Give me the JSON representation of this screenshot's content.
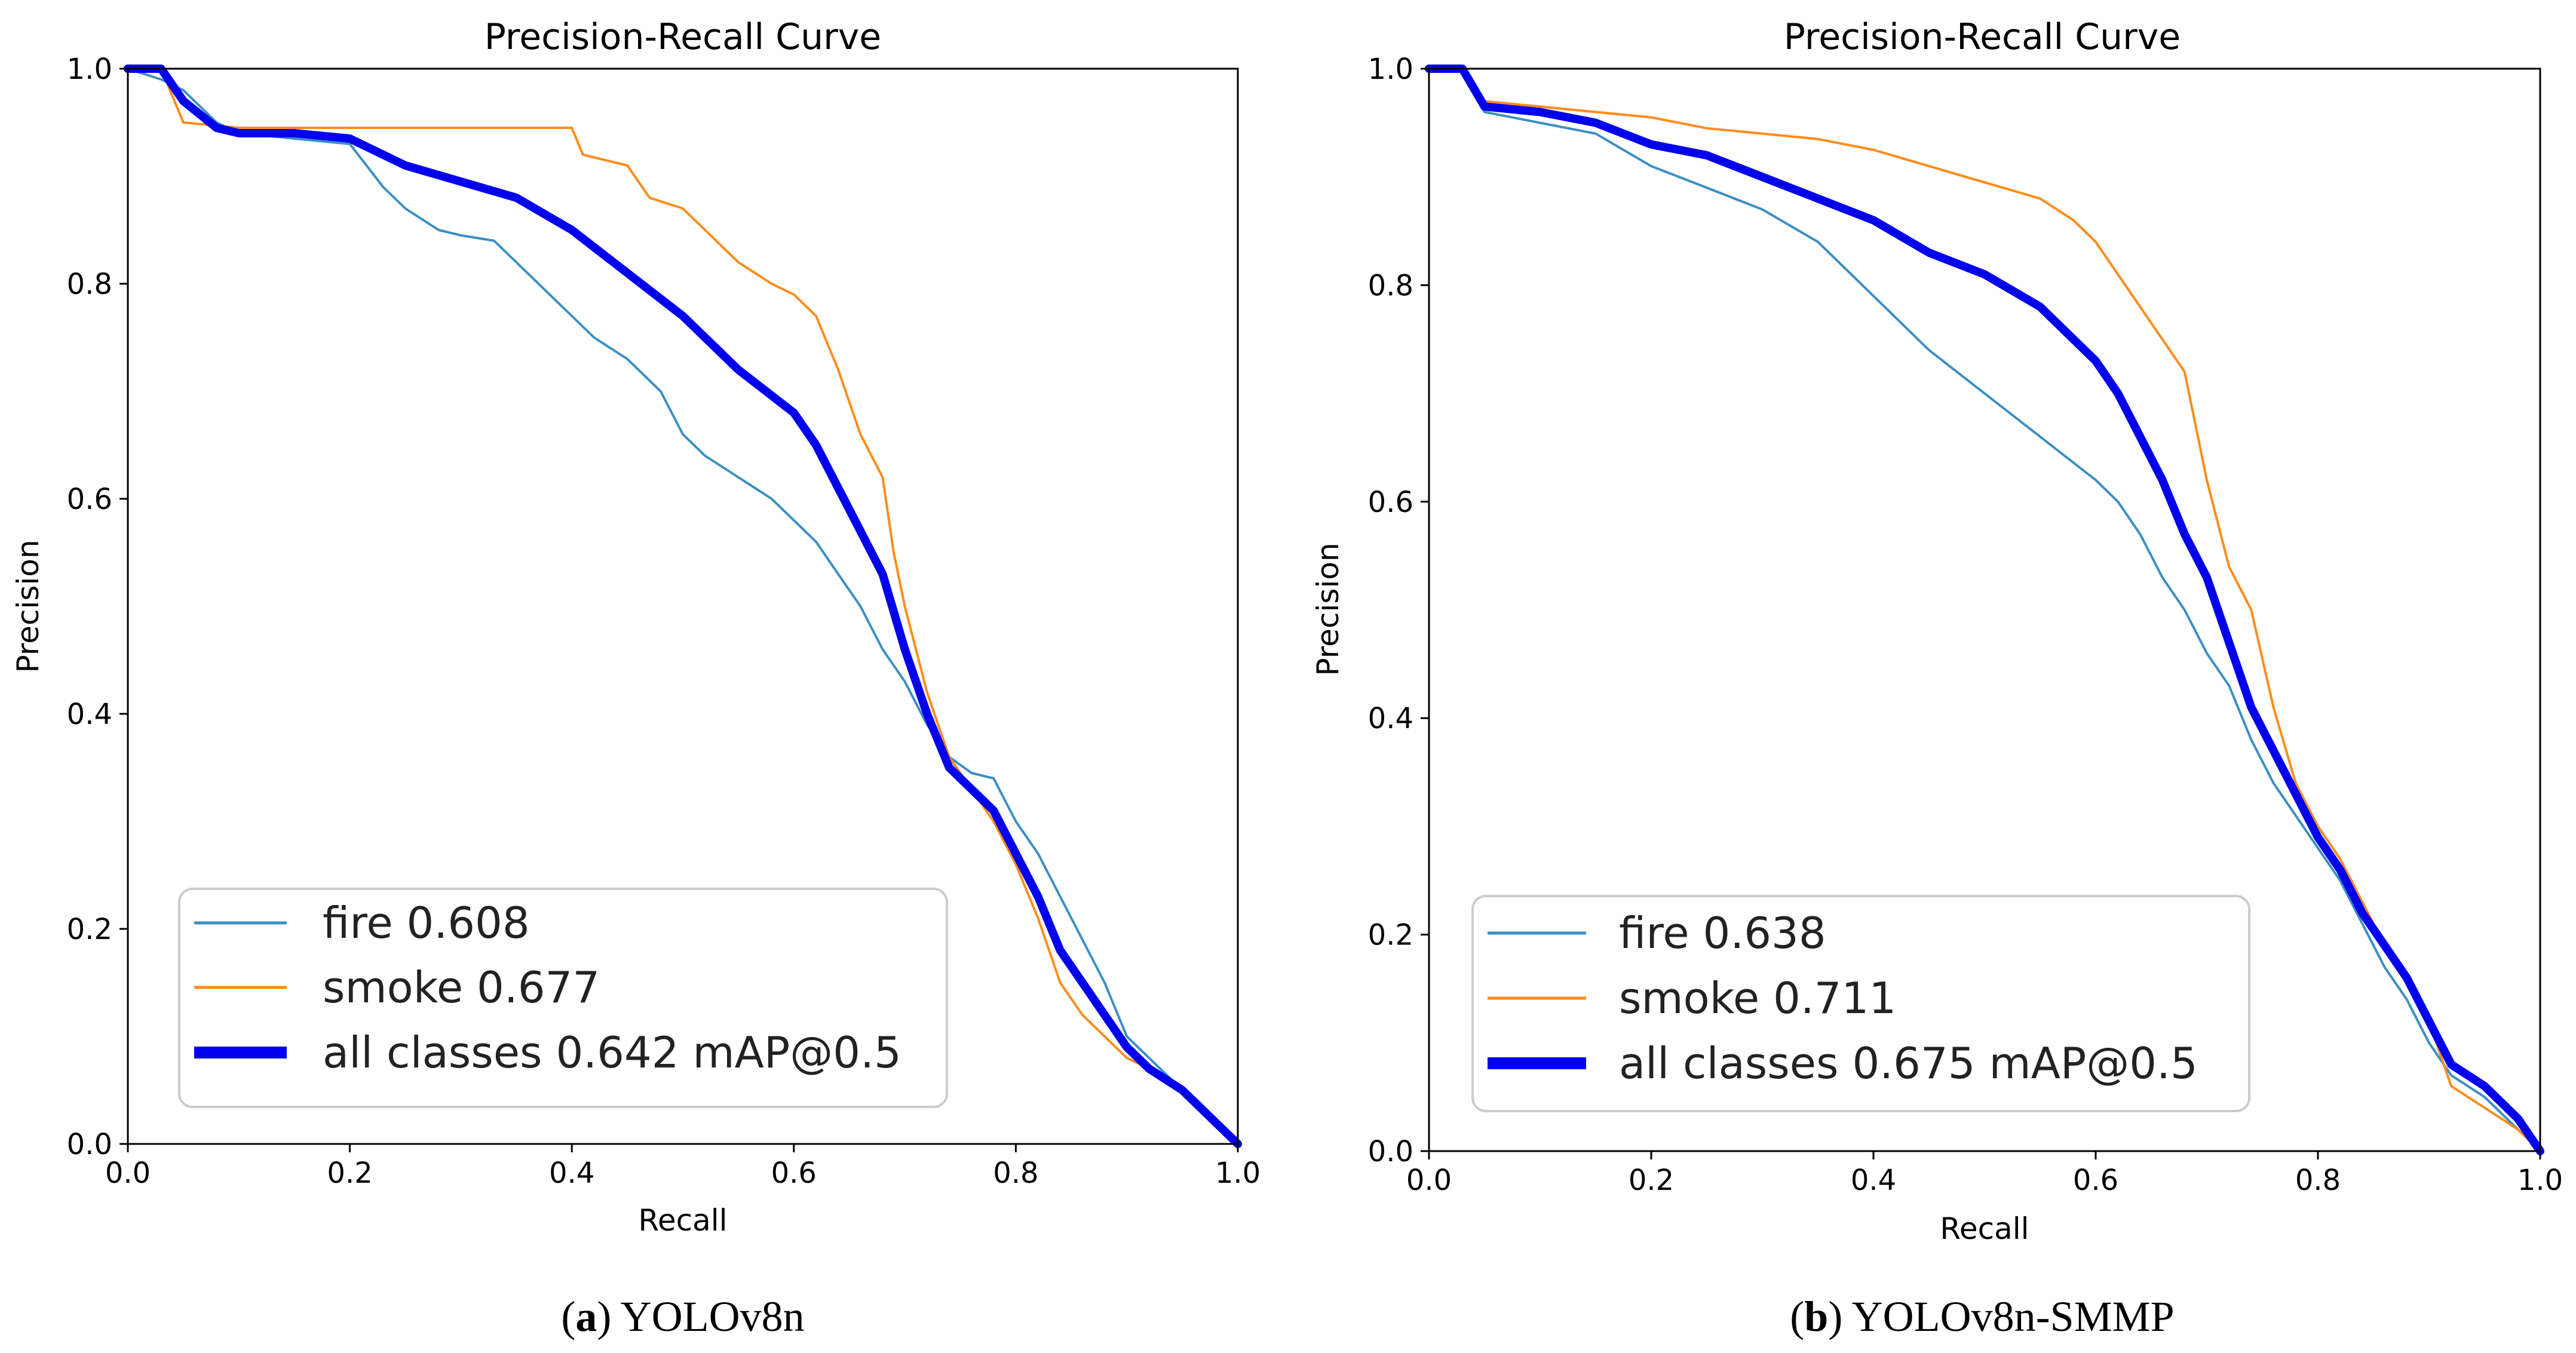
{
  "colors": {
    "fire": "#3b8fc4",
    "smoke": "#ff8c1a",
    "all_classes": "#0000ee",
    "axes": "#000000"
  },
  "chart_data": [
    {
      "type": "line",
      "title": "Precision-Recall Curve",
      "xlabel": "Recall",
      "ylabel": "Precision",
      "xlim": [
        0,
        1
      ],
      "ylim": [
        0,
        1
      ],
      "ticks": [
        "0.0",
        "0.2",
        "0.4",
        "0.6",
        "0.8",
        "1.0"
      ],
      "tick_values": [
        0,
        0.2,
        0.4,
        0.6,
        0.8,
        1.0
      ],
      "legend_position": "lower-left",
      "caption_label": "a",
      "caption_text": "YOLOv8n",
      "series": [
        {
          "name": "fire 0.608",
          "key": "fire",
          "x": [
            0,
            0.03,
            0.05,
            0.08,
            0.1,
            0.15,
            0.2,
            0.23,
            0.25,
            0.28,
            0.3,
            0.33,
            0.35,
            0.38,
            0.4,
            0.42,
            0.45,
            0.48,
            0.5,
            0.52,
            0.55,
            0.58,
            0.6,
            0.62,
            0.64,
            0.66,
            0.68,
            0.7,
            0.72,
            0.74,
            0.76,
            0.78,
            0.8,
            0.82,
            0.84,
            0.86,
            0.88,
            0.9,
            0.92,
            0.95,
            0.98,
            1.0
          ],
          "y": [
            1.0,
            0.99,
            0.98,
            0.95,
            0.94,
            0.935,
            0.93,
            0.89,
            0.87,
            0.85,
            0.845,
            0.84,
            0.82,
            0.79,
            0.77,
            0.75,
            0.73,
            0.7,
            0.66,
            0.64,
            0.62,
            0.6,
            0.58,
            0.56,
            0.53,
            0.5,
            0.46,
            0.43,
            0.39,
            0.36,
            0.345,
            0.34,
            0.3,
            0.27,
            0.23,
            0.19,
            0.15,
            0.1,
            0.08,
            0.05,
            0.02,
            0.0
          ]
        },
        {
          "name": "smoke 0.677",
          "key": "smoke",
          "x": [
            0,
            0.03,
            0.05,
            0.1,
            0.15,
            0.2,
            0.25,
            0.3,
            0.35,
            0.4,
            0.41,
            0.45,
            0.47,
            0.5,
            0.53,
            0.55,
            0.58,
            0.6,
            0.62,
            0.64,
            0.66,
            0.68,
            0.69,
            0.7,
            0.71,
            0.72,
            0.74,
            0.76,
            0.78,
            0.8,
            0.82,
            0.84,
            0.86,
            0.88,
            0.9,
            0.92,
            0.95,
            0.98,
            1.0
          ],
          "y": [
            1.0,
            1.0,
            0.95,
            0.945,
            0.945,
            0.945,
            0.945,
            0.945,
            0.945,
            0.945,
            0.92,
            0.91,
            0.88,
            0.87,
            0.84,
            0.82,
            0.8,
            0.79,
            0.77,
            0.72,
            0.66,
            0.62,
            0.55,
            0.5,
            0.46,
            0.42,
            0.36,
            0.33,
            0.3,
            0.26,
            0.21,
            0.15,
            0.12,
            0.1,
            0.08,
            0.07,
            0.05,
            0.02,
            0.0
          ]
        },
        {
          "name": "all classes 0.642 mAP@0.5",
          "key": "all_classes",
          "x": [
            0,
            0.03,
            0.05,
            0.08,
            0.1,
            0.15,
            0.2,
            0.25,
            0.3,
            0.35,
            0.4,
            0.45,
            0.5,
            0.55,
            0.6,
            0.62,
            0.64,
            0.66,
            0.68,
            0.7,
            0.72,
            0.74,
            0.76,
            0.78,
            0.8,
            0.82,
            0.84,
            0.86,
            0.88,
            0.9,
            0.92,
            0.95,
            0.98,
            1.0
          ],
          "y": [
            1.0,
            1.0,
            0.97,
            0.945,
            0.94,
            0.94,
            0.935,
            0.91,
            0.895,
            0.88,
            0.85,
            0.81,
            0.77,
            0.72,
            0.68,
            0.65,
            0.61,
            0.57,
            0.53,
            0.46,
            0.4,
            0.35,
            0.33,
            0.31,
            0.27,
            0.23,
            0.18,
            0.15,
            0.12,
            0.09,
            0.07,
            0.05,
            0.02,
            0.0
          ]
        }
      ]
    },
    {
      "type": "line",
      "title": "Precision-Recall Curve",
      "xlabel": "Recall",
      "ylabel": "Precision",
      "xlim": [
        0,
        1
      ],
      "ylim": [
        0,
        1
      ],
      "ticks": [
        "0.0",
        "0.2",
        "0.4",
        "0.6",
        "0.8",
        "1.0"
      ],
      "tick_values": [
        0,
        0.2,
        0.4,
        0.6,
        0.8,
        1.0
      ],
      "legend_position": "lower-left",
      "caption_label": "b",
      "caption_text": "YOLOv8n-SMMP",
      "series": [
        {
          "name": "fire 0.638",
          "key": "fire",
          "x": [
            0,
            0.03,
            0.05,
            0.1,
            0.15,
            0.2,
            0.25,
            0.3,
            0.35,
            0.4,
            0.45,
            0.5,
            0.55,
            0.6,
            0.62,
            0.64,
            0.66,
            0.68,
            0.7,
            0.72,
            0.74,
            0.76,
            0.78,
            0.8,
            0.82,
            0.84,
            0.86,
            0.88,
            0.9,
            0.92,
            0.95,
            0.98,
            1.0
          ],
          "y": [
            1.0,
            1.0,
            0.96,
            0.95,
            0.94,
            0.91,
            0.89,
            0.87,
            0.84,
            0.79,
            0.74,
            0.7,
            0.66,
            0.62,
            0.6,
            0.57,
            0.53,
            0.5,
            0.46,
            0.43,
            0.38,
            0.34,
            0.31,
            0.28,
            0.25,
            0.21,
            0.17,
            0.14,
            0.1,
            0.07,
            0.05,
            0.02,
            0.0
          ]
        },
        {
          "name": "smoke 0.711",
          "key": "smoke",
          "x": [
            0,
            0.03,
            0.05,
            0.1,
            0.15,
            0.2,
            0.25,
            0.3,
            0.35,
            0.4,
            0.45,
            0.5,
            0.55,
            0.58,
            0.6,
            0.62,
            0.64,
            0.66,
            0.68,
            0.7,
            0.72,
            0.74,
            0.76,
            0.78,
            0.8,
            0.82,
            0.84,
            0.86,
            0.88,
            0.9,
            0.92,
            0.95,
            0.98,
            1.0
          ],
          "y": [
            1.0,
            1.0,
            0.97,
            0.965,
            0.96,
            0.955,
            0.945,
            0.94,
            0.935,
            0.925,
            0.91,
            0.895,
            0.88,
            0.86,
            0.84,
            0.81,
            0.78,
            0.75,
            0.72,
            0.62,
            0.54,
            0.5,
            0.41,
            0.34,
            0.3,
            0.27,
            0.23,
            0.19,
            0.16,
            0.12,
            0.06,
            0.04,
            0.02,
            0.0
          ]
        },
        {
          "name": "all classes 0.675 mAP@0.5",
          "key": "all_classes",
          "x": [
            0,
            0.03,
            0.05,
            0.1,
            0.15,
            0.2,
            0.25,
            0.3,
            0.35,
            0.4,
            0.45,
            0.5,
            0.55,
            0.6,
            0.62,
            0.64,
            0.66,
            0.68,
            0.7,
            0.72,
            0.74,
            0.76,
            0.78,
            0.8,
            0.82,
            0.84,
            0.86,
            0.88,
            0.9,
            0.92,
            0.95,
            0.98,
            1.0
          ],
          "y": [
            1.0,
            1.0,
            0.965,
            0.96,
            0.95,
            0.93,
            0.92,
            0.9,
            0.88,
            0.86,
            0.83,
            0.81,
            0.78,
            0.73,
            0.7,
            0.66,
            0.62,
            0.57,
            0.53,
            0.47,
            0.41,
            0.37,
            0.33,
            0.29,
            0.26,
            0.22,
            0.19,
            0.16,
            0.12,
            0.08,
            0.06,
            0.03,
            0.0
          ]
        }
      ]
    }
  ]
}
